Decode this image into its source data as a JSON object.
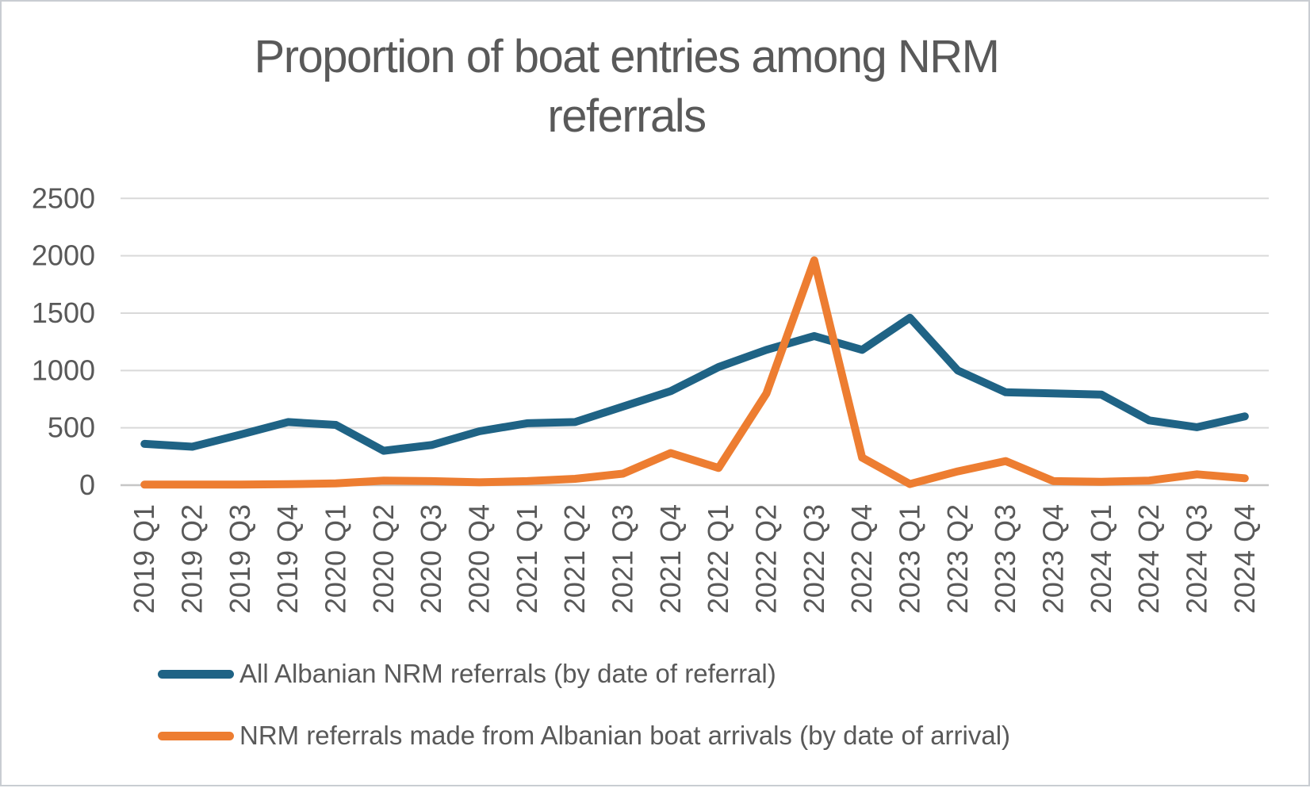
{
  "frame": {
    "background": "#ffffff",
    "border_color": "#c9cdd2"
  },
  "text_color": "#595959",
  "chart_data": {
    "type": "line",
    "title": "Proportion of boat entries among NRM referrals",
    "categories": [
      "2019 Q1",
      "2019 Q2",
      "2019 Q3",
      "2019 Q4",
      "2020 Q1",
      "2020 Q2",
      "2020 Q3",
      "2020 Q4",
      "2021 Q1",
      "2021 Q2",
      "2021 Q3",
      "2021 Q4",
      "2022 Q1",
      "2022 Q2",
      "2022 Q3",
      "2022 Q4",
      "2023 Q1",
      "2023 Q2",
      "2023 Q3",
      "2023 Q4",
      "2024 Q1",
      "2024 Q2",
      "2024 Q3",
      "2024 Q4"
    ],
    "series": [
      {
        "name": "All Albanian NRM referrals (by date of referral)",
        "color": "#1f6385",
        "values": [
          360,
          335,
          440,
          550,
          525,
          300,
          350,
          470,
          540,
          550,
          685,
          820,
          1030,
          1180,
          1300,
          1180,
          1460,
          1000,
          810,
          800,
          790,
          565,
          505,
          600
        ]
      },
      {
        "name": "NRM referrals made from Albanian boat arrivals (by date of arrival)",
        "color": "#ed7d31",
        "values": [
          5,
          5,
          5,
          8,
          15,
          40,
          35,
          25,
          35,
          55,
          100,
          280,
          150,
          800,
          1960,
          240,
          10,
          120,
          210,
          35,
          30,
          40,
          95,
          60
        ]
      }
    ],
    "xlabel": "",
    "ylabel": "",
    "ylim": [
      0,
      2500
    ],
    "y_ticks": [
      0,
      500,
      1000,
      1500,
      2000,
      2500
    ],
    "grid": "horizontal-only",
    "grid_color": "#d9d9d9",
    "axis_line_color": "#c6c6c6",
    "legend_position": "bottom-left",
    "line_width": 10
  }
}
